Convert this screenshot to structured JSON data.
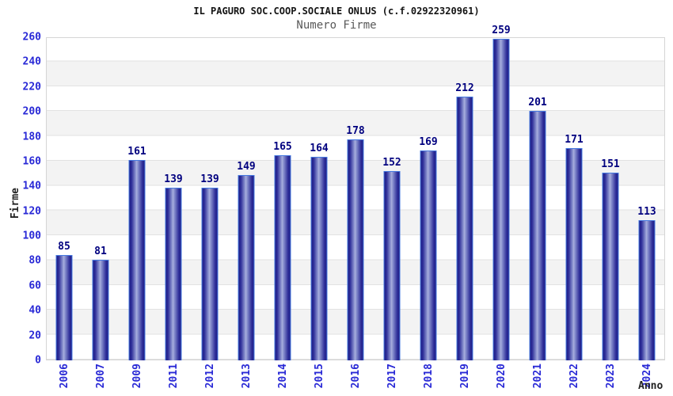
{
  "chart_data": {
    "type": "bar",
    "title": "IL PAGURO SOC.COOP.SOCIALE ONLUS (c.f.02922320961)",
    "subtitle": "Numero Firme",
    "xlabel": "Anno",
    "ylabel": "Firme",
    "categories": [
      "2006",
      "2007",
      "2009",
      "2011",
      "2012",
      "2013",
      "2014",
      "2015",
      "2016",
      "2017",
      "2018",
      "2019",
      "2020",
      "2021",
      "2022",
      "2023",
      "2024"
    ],
    "values": [
      85,
      81,
      161,
      139,
      139,
      149,
      165,
      164,
      178,
      152,
      169,
      212,
      259,
      201,
      171,
      151,
      113
    ],
    "ylim": [
      0,
      260
    ],
    "yticks": [
      0,
      20,
      40,
      60,
      80,
      100,
      120,
      140,
      160,
      180,
      200,
      220,
      240,
      260
    ],
    "grid": "horizontal gridlines with alternating gray bands every 20 units",
    "legend_position": "none",
    "bar_value_labels": true,
    "x_tick_rotation": "vertical bottom-to-top",
    "colors": {
      "title_color": "#141414",
      "subtitle_color": "#595959",
      "tick_blue": "#2929d6",
      "value_navy": "#00007f",
      "axis_title": "#222222",
      "plot_border": "#d5d5d5",
      "grid": "#e2e2e2",
      "stripe": "#f3f3f3",
      "bar_border": "#4679e0",
      "bar_dark": "#1f1f87",
      "bar_mid": "#2e2e99",
      "bar_light": "#8f97d2",
      "bar_lighter": "#aab0de"
    }
  }
}
